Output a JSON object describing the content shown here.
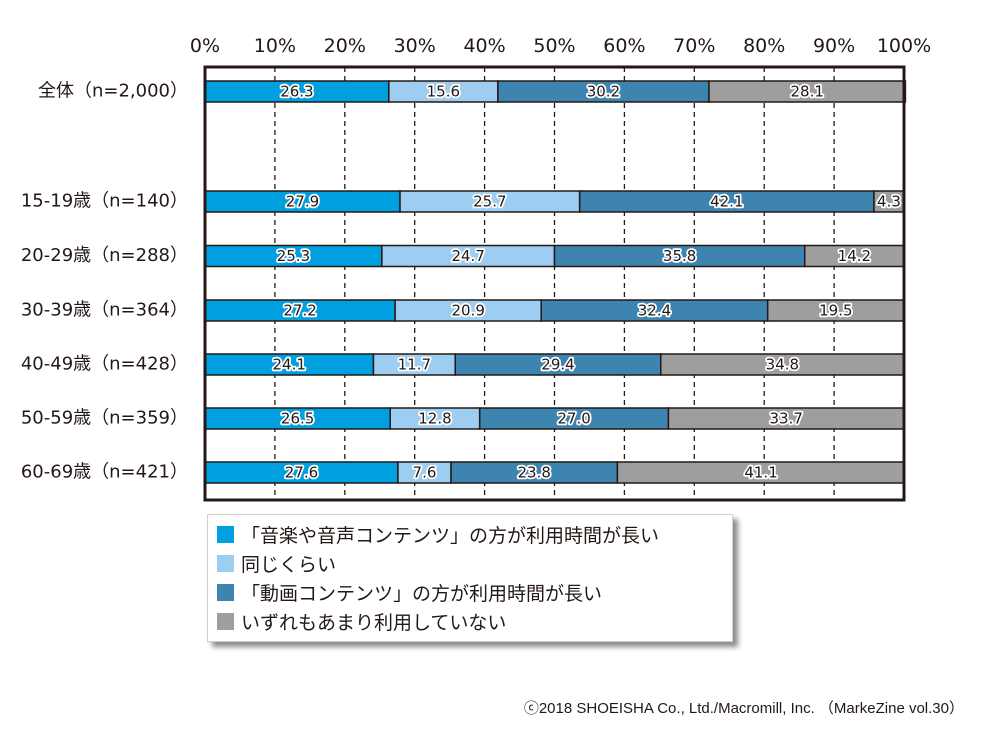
{
  "chart_data": {
    "type": "bar",
    "orientation": "horizontal",
    "stacked": true,
    "title": "",
    "xlabel": "",
    "ylabel": "",
    "xlim": [
      0,
      100
    ],
    "x_ticks": [
      "0%",
      "10%",
      "20%",
      "30%",
      "40%",
      "50%",
      "60%",
      "70%",
      "80%",
      "90%",
      "100%"
    ],
    "grid": "vertical dashed",
    "legend_position": "bottom-left",
    "categories": [
      "全体（n=2,000）",
      "15-19歳（n=140）",
      "20-29歳（n=288）",
      "30-39歳（n=364）",
      "40-49歳（n=428）",
      "50-59歳（n=359）",
      "60-69歳（n=421）"
    ],
    "series": [
      {
        "name": "「音楽や音声コンテンツ」の方が利用時間が長い",
        "color": "#00a0e0",
        "values": [
          26.3,
          27.9,
          25.3,
          27.2,
          24.1,
          26.5,
          27.6
        ]
      },
      {
        "name": "同じくらい",
        "color": "#9dcdf0",
        "values": [
          15.6,
          25.7,
          24.7,
          20.9,
          11.7,
          12.8,
          7.6
        ]
      },
      {
        "name": "「動画コンテンツ」の方が利用時間が長い",
        "color": "#3d85b0",
        "values": [
          30.2,
          42.1,
          35.8,
          32.4,
          29.4,
          27.0,
          23.8
        ]
      },
      {
        "name": "いずれもあまり利用していない",
        "color": "#9e9e9e",
        "values": [
          28.1,
          4.3,
          14.2,
          19.5,
          34.8,
          33.7,
          41.1
        ]
      }
    ],
    "value_labels": [
      [
        "26.3",
        "15.6",
        "30.2",
        "28.1"
      ],
      [
        "27.9",
        "25.7",
        "42.1",
        "4.3"
      ],
      [
        "25.3",
        "24.7",
        "35.8",
        "14.2"
      ],
      [
        "27.2",
        "20.9",
        "32.4",
        "19.5"
      ],
      [
        "24.1",
        "11.7",
        "29.4",
        "34.8"
      ],
      [
        "26.5",
        "12.8",
        "27.0",
        "33.7"
      ],
      [
        "27.6",
        "7.6",
        "23.8",
        "41.1"
      ]
    ]
  },
  "legend": {
    "items": [
      {
        "label": "「音楽や音声コンテンツ」の方が利用時間が長い",
        "color": "#00a0e0"
      },
      {
        "label": "同じくらい",
        "color": "#9dcdf0"
      },
      {
        "label": "「動画コンテンツ」の方が利用時間が長い",
        "color": "#3d85b0"
      },
      {
        "label": "いずれもあまり利用していない",
        "color": "#9e9e9e"
      }
    ]
  },
  "footer": {
    "copyright": "ⓒ2018 SHOEISHA Co., Ltd./Macromill, Inc. （MarkeZine vol.30）"
  }
}
